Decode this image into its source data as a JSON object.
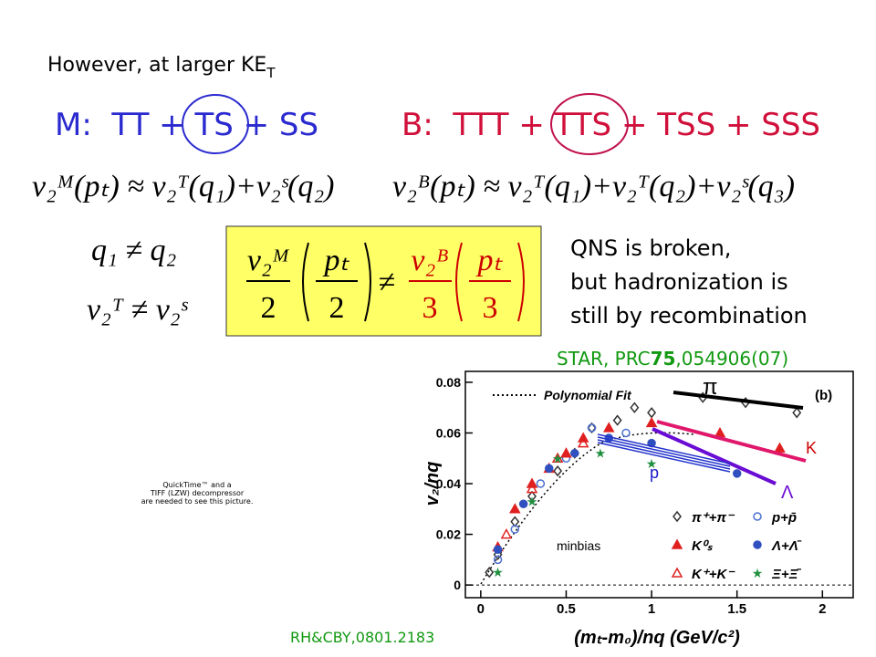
{
  "header": {
    "text": "However, at larger KE",
    "subscript": "T"
  },
  "combos": {
    "meson": "M:  TT + TS + SS",
    "baryon": "B:  TTT + TTS + TSS + SSS"
  },
  "equations": {
    "meson": "v₂ᴹ(pₜ) ≈ v₂ᵀ(q₁)+v₂ˢ(q₂)",
    "baryon": "v₂ᴮ(pₜ) ≈ v₂ᵀ(q₁)+v₂ᵀ(q₂)+v₂ˢ(q₃)",
    "ineq1": "q₁ ≠ q₂",
    "ineq2": "v₂ᵀ ≠ v₂ˢ"
  },
  "box": {
    "left_num": "v₂ᴹ",
    "left_den": "2",
    "left_arg_num": "pₜ",
    "left_arg_den": "2",
    "neq": "≠",
    "right_num": "v₂ᴮ",
    "right_den": "3",
    "right_arg_num": "pₜ",
    "right_arg_den": "3"
  },
  "note": {
    "lines": [
      "QNS is broken,",
      "but hadronization is",
      "still by recombination"
    ]
  },
  "citation": {
    "prefix": "STAR, PRC",
    "volume": "75",
    "suffix": ",054906(07)"
  },
  "footer": "RH&CBY,0801.2183",
  "placeholder": {
    "lines": [
      "QuickTime™ and a",
      "TIFF (LZW) decompressor",
      "are needed to see this picture."
    ]
  },
  "chart_data": {
    "type": "scatter",
    "x_label": "(mₜ-m₀)/nq (GeV/c²)",
    "y_label": "v₂/nq",
    "xlim": [
      -0.09,
      2.18
    ],
    "ylim": [
      -0.005,
      0.0843
    ],
    "xticks": [
      0,
      0.5,
      1,
      1.5,
      2
    ],
    "yticks": [
      0,
      0.02,
      0.04,
      0.06,
      0.08
    ],
    "fit_label": "Polynomial Fit",
    "panel_label": "(b)",
    "annotation": "minbias",
    "curve_labels": {
      "pi": "π",
      "kaon": "K",
      "proton": "p",
      "lambda": "Λ"
    },
    "series": [
      {
        "name": "π⁺+π⁻",
        "color": "#333333",
        "marker": "diamond-open",
        "x": [
          0.05,
          0.1,
          0.2,
          0.3,
          0.45,
          0.55,
          0.65,
          0.8,
          0.9,
          1.0,
          1.3,
          1.55,
          1.85
        ],
        "values": [
          0.005,
          0.012,
          0.025,
          0.035,
          0.045,
          0.052,
          0.062,
          0.065,
          0.07,
          0.068,
          0.074,
          0.072,
          0.068
        ]
      },
      {
        "name": "p+p̄",
        "color": "#4a6fd0",
        "marker": "circle-open",
        "x": [
          0.1,
          0.2,
          0.35,
          0.5,
          0.65,
          0.85
        ],
        "values": [
          0.01,
          0.022,
          0.04,
          0.05,
          0.062,
          0.06
        ]
      },
      {
        "name": "K⁰ₛ",
        "color": "#e02020",
        "marker": "triangle",
        "x": [
          0.1,
          0.2,
          0.3,
          0.4,
          0.5,
          0.6,
          0.75,
          1.0,
          1.4,
          1.75
        ],
        "values": [
          0.015,
          0.03,
          0.04,
          0.046,
          0.052,
          0.058,
          0.062,
          0.064,
          0.06,
          0.054
        ]
      },
      {
        "name": "Λ+Λ̄",
        "color": "#3050c0",
        "marker": "circle",
        "x": [
          0.1,
          0.25,
          0.4,
          0.55,
          0.75,
          1.0,
          1.5
        ],
        "values": [
          0.014,
          0.032,
          0.046,
          0.052,
          0.058,
          0.056,
          0.044
        ]
      },
      {
        "name": "K⁺+K⁻",
        "color": "#e02020",
        "marker": "triangle-open",
        "x": [
          0.15,
          0.3,
          0.45,
          0.6
        ],
        "values": [
          0.02,
          0.038,
          0.05,
          0.056
        ]
      },
      {
        "name": "Ξ+Ξ̄",
        "color": "#209040",
        "marker": "star",
        "x": [
          0.1,
          0.3,
          0.45,
          0.7,
          1.0
        ],
        "values": [
          0.005,
          0.033,
          0.05,
          0.052,
          0.048
        ]
      }
    ]
  }
}
